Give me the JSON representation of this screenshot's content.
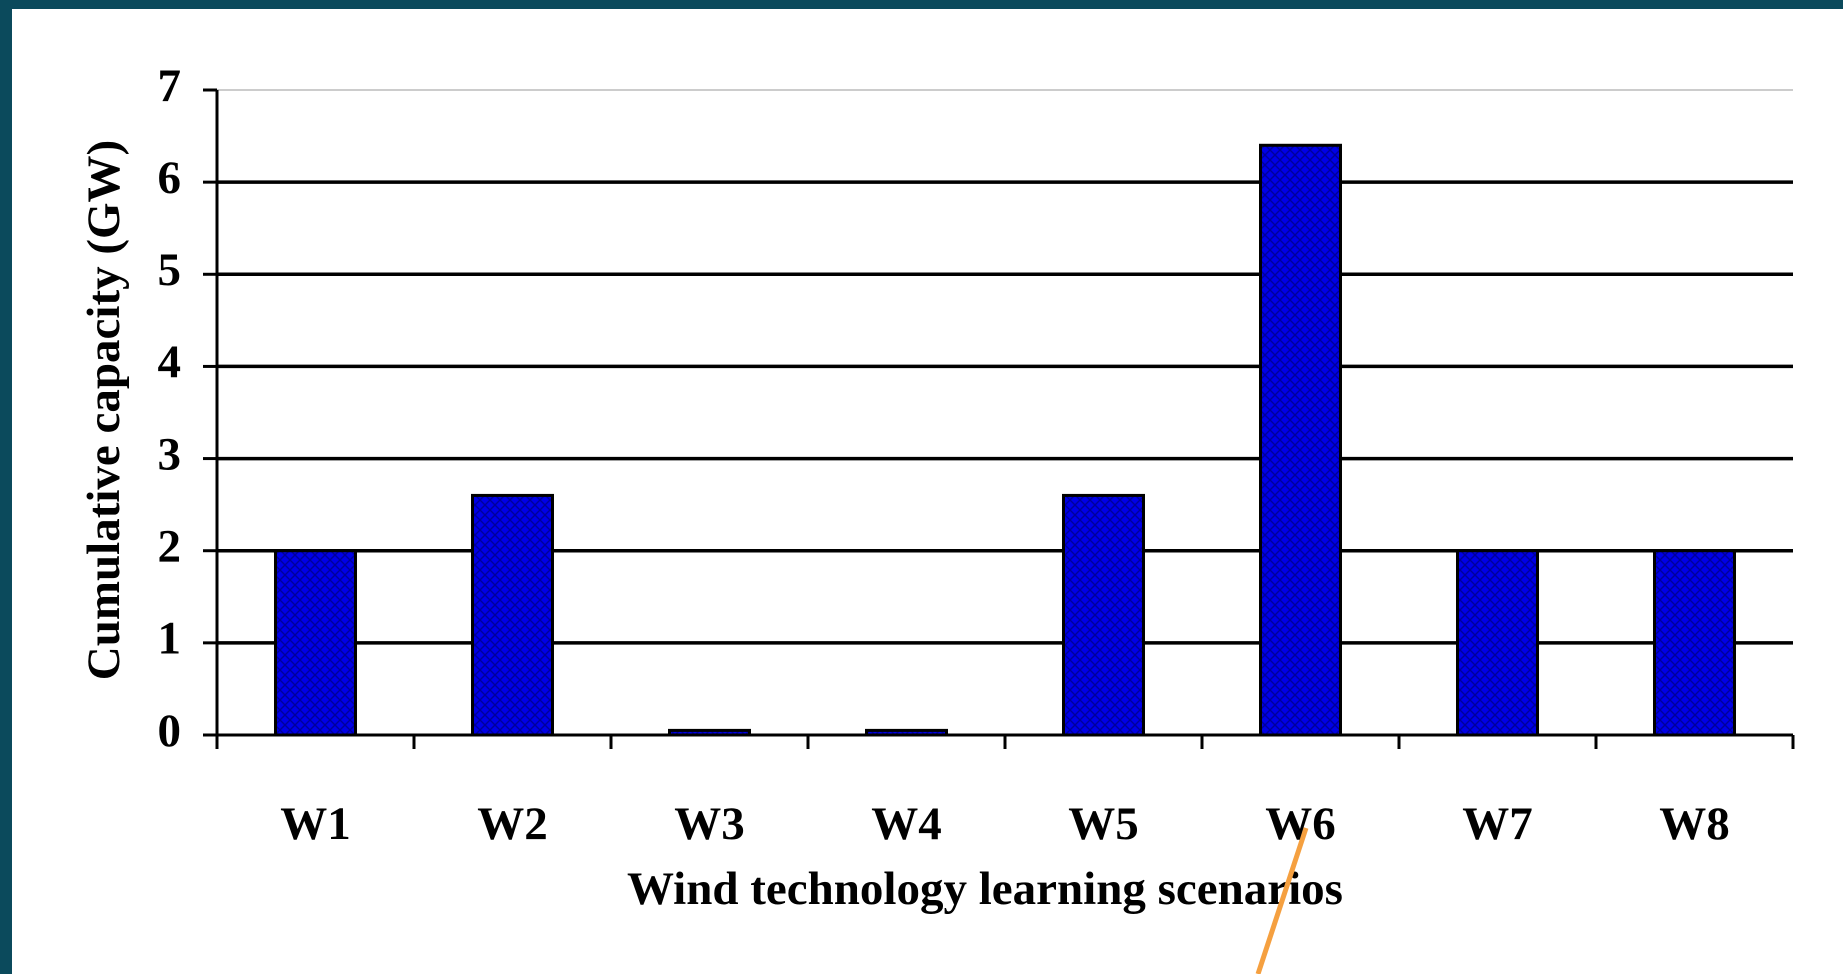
{
  "chart_data": {
    "type": "bar",
    "categories": [
      "W1",
      "W2",
      "W3",
      "W4",
      "W5",
      "W6",
      "W7",
      "W8"
    ],
    "values": [
      2,
      2.6,
      0.05,
      0.05,
      2.6,
      6.4,
      2,
      2
    ],
    "color": "#0000e6",
    "ylim": [
      0,
      7
    ],
    "yticks": [
      0,
      1,
      2,
      3,
      4,
      5,
      6,
      7
    ],
    "grid": true,
    "ylabel": "Cumulative capacity (GW)",
    "xlabel": "Wind technology learning scenarios"
  }
}
